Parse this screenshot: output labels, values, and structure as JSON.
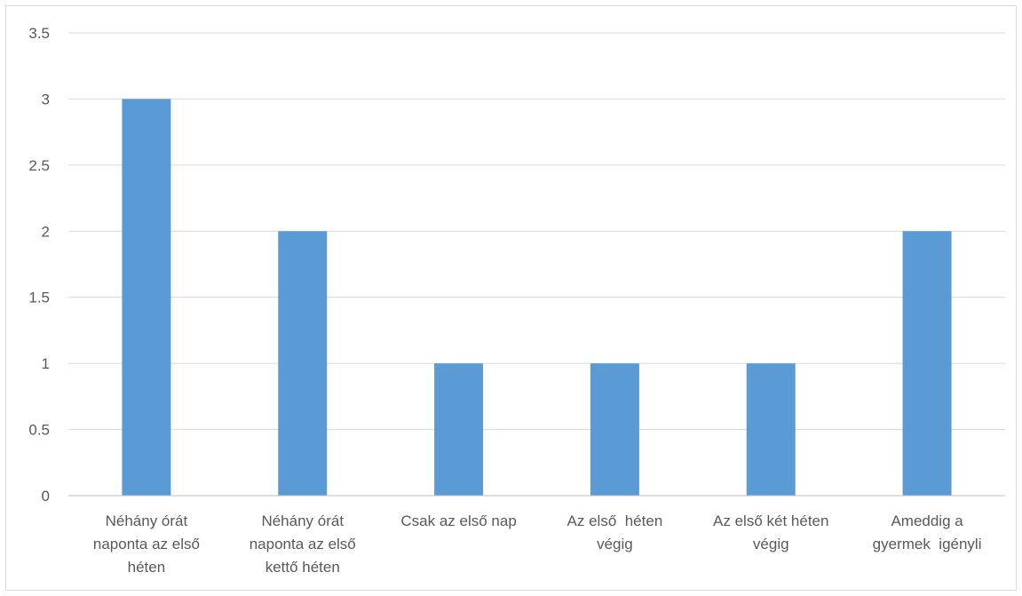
{
  "chart_data": {
    "type": "bar",
    "categories": [
      [
        "Néhány órát",
        "naponta az első",
        "héten"
      ],
      [
        "Néhány órát",
        "naponta az első",
        "kettő héten"
      ],
      [
        "Csak az első nap"
      ],
      [
        "Az első  héten",
        "végig"
      ],
      [
        "Az első két héten",
        "végig"
      ],
      [
        "Ameddig a",
        "gyermek  igényli"
      ]
    ],
    "values": [
      3,
      2,
      1,
      1,
      1,
      2
    ],
    "ylim": [
      0,
      3.5
    ],
    "yticks": [
      "0",
      "0.5",
      "1",
      "1.5",
      "2",
      "2.5",
      "3",
      "3.5"
    ],
    "ytick_values": [
      0,
      0.5,
      1,
      1.5,
      2,
      2.5,
      3,
      3.5
    ],
    "grid": true,
    "bar_color": "#5b9bd5"
  }
}
